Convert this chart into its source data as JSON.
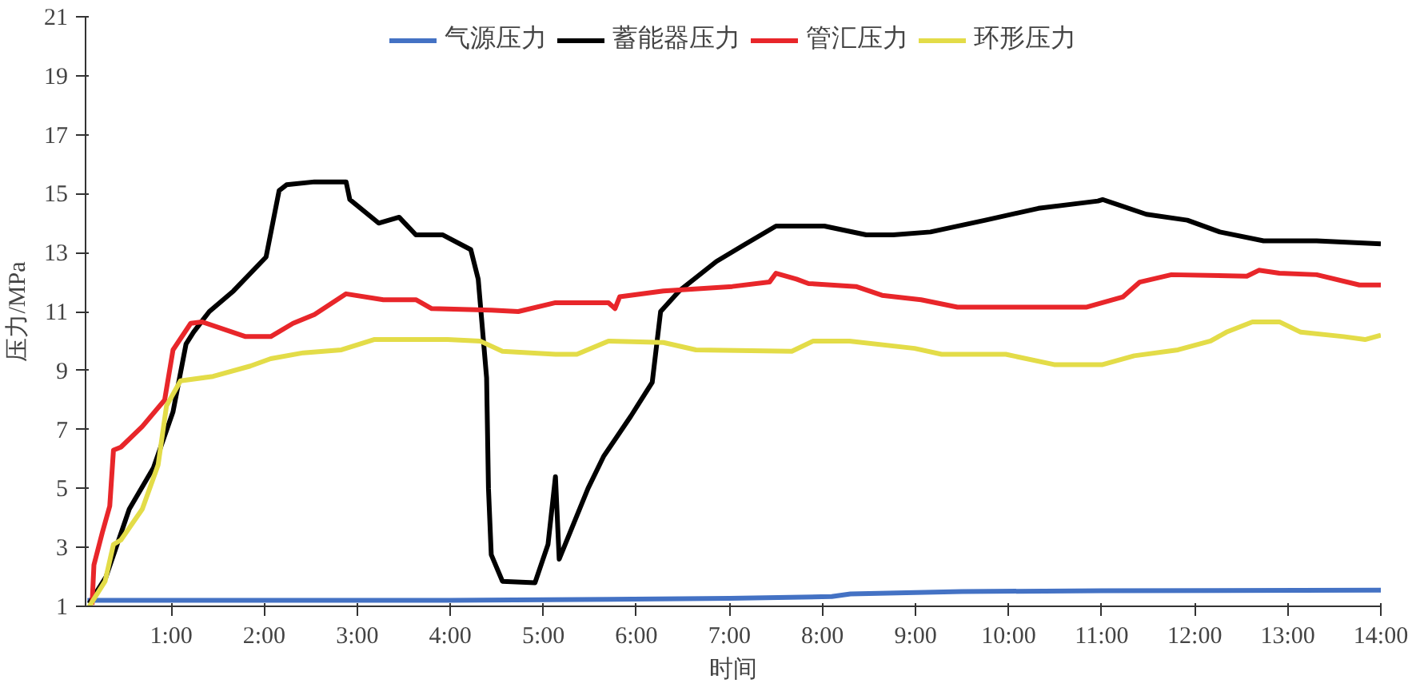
{
  "chart_data": {
    "type": "line",
    "xlabel": "时间",
    "ylabel": "压力/MPa",
    "xlim": [
      0.08,
      14
    ],
    "ylim": [
      1,
      21
    ],
    "xticks": [
      {
        "value": 1,
        "label": "1:00"
      },
      {
        "value": 2,
        "label": "2:00"
      },
      {
        "value": 3,
        "label": "3:00"
      },
      {
        "value": 4,
        "label": "4:00"
      },
      {
        "value": 5,
        "label": "5:00"
      },
      {
        "value": 6,
        "label": "6:00"
      },
      {
        "value": 7,
        "label": "7:00"
      },
      {
        "value": 8,
        "label": "8:00"
      },
      {
        "value": 9,
        "label": "9:00"
      },
      {
        "value": 10,
        "label": "10:00"
      },
      {
        "value": 11,
        "label": "11:00"
      },
      {
        "value": 12,
        "label": "12:00"
      },
      {
        "value": 13,
        "label": "13:00"
      },
      {
        "value": 14,
        "label": "14:00"
      }
    ],
    "yticks": [
      1,
      3,
      5,
      7,
      9,
      11,
      13,
      15,
      17,
      19,
      21
    ],
    "grid": false,
    "legend": "top",
    "marker": "none",
    "line_style": "solid",
    "series": [
      {
        "name": "气源压力",
        "color": "#4472c4",
        "x": [
          0.1,
          4,
          7,
          8.1,
          8.3,
          9.5,
          11,
          14
        ],
        "values": [
          1.2,
          1.2,
          1.27,
          1.33,
          1.42,
          1.5,
          1.53,
          1.55
        ]
      },
      {
        "name": "蓄能器压力",
        "color": "#000000",
        "x": [
          0.12,
          0.3,
          0.55,
          0.81,
          1.02,
          1.16,
          1.24,
          1.41,
          1.67,
          2.02,
          2.16,
          2.24,
          2.54,
          2.88,
          2.92,
          3.23,
          3.45,
          3.63,
          3.92,
          4.22,
          4.3,
          4.39,
          4.41,
          4.44,
          4.56,
          4.91,
          5.05,
          5.13,
          5.17,
          5.48,
          5.65,
          5.94,
          6.17,
          6.26,
          6.46,
          6.86,
          7.15,
          7.5,
          8.02,
          8.47,
          8.76,
          9.16,
          9.75,
          10.32,
          10.96,
          11.01,
          11.48,
          11.92,
          12.27,
          12.74,
          13.31,
          14
        ],
        "values": [
          1.1,
          2.0,
          4.3,
          5.7,
          7.6,
          9.9,
          10.3,
          11,
          11.7,
          12.85,
          15.1,
          15.3,
          15.4,
          15.4,
          14.8,
          14.0,
          14.2,
          13.6,
          13.6,
          13.1,
          12.1,
          8.75,
          5.0,
          2.75,
          1.85,
          1.8,
          3.1,
          5.4,
          2.6,
          5.0,
          6.1,
          7.45,
          8.6,
          11.0,
          11.7,
          12.7,
          13.25,
          13.9,
          13.9,
          13.6,
          13.6,
          13.7,
          14.1,
          14.5,
          14.75,
          14.8,
          14.3,
          14.1,
          13.7,
          13.4,
          13.4,
          13.3
        ]
      },
      {
        "name": "管汇压力",
        "color": "#e8262a",
        "x": [
          0.15,
          0.17,
          0.26,
          0.34,
          0.38,
          0.46,
          0.69,
          0.93,
          1.02,
          1.21,
          1.33,
          1.8,
          2.07,
          2.31,
          2.54,
          2.88,
          3.28,
          3.63,
          3.8,
          4.44,
          4.73,
          5.13,
          5.7,
          5.77,
          5.82,
          6.29,
          7.03,
          7.43,
          7.5,
          7.72,
          7.85,
          8.36,
          8.64,
          9.06,
          9.45,
          10.84,
          11.23,
          11.41,
          11.75,
          12.56,
          12.69,
          12.91,
          13.31,
          13.77,
          14
        ],
        "values": [
          1.05,
          2.4,
          3.5,
          4.4,
          6.3,
          6.4,
          7.1,
          8.0,
          9.7,
          10.6,
          10.65,
          10.15,
          10.15,
          10.6,
          10.9,
          11.6,
          11.4,
          11.4,
          11.1,
          11.05,
          11.0,
          11.3,
          11.3,
          11.1,
          11.5,
          11.7,
          11.85,
          12.0,
          12.3,
          12.1,
          11.95,
          11.85,
          11.55,
          11.4,
          11.15,
          11.15,
          11.5,
          12.0,
          12.25,
          12.2,
          12.4,
          12.3,
          12.25,
          11.9,
          11.9
        ]
      },
      {
        "name": "环形压力",
        "color": "#e3dc48",
        "x": [
          0.12,
          0.29,
          0.38,
          0.46,
          0.69,
          0.86,
          0.95,
          1.1,
          1.45,
          1.85,
          2.07,
          2.42,
          2.83,
          3.18,
          3.97,
          4.32,
          4.56,
          5.13,
          5.36,
          5.7,
          6.29,
          6.64,
          7.67,
          7.9,
          8.29,
          8.99,
          9.28,
          9.97,
          10.49,
          11.01,
          11.35,
          11.82,
          12.17,
          12.34,
          12.62,
          12.91,
          13.14,
          13.6,
          13.83,
          14
        ],
        "values": [
          1.0,
          1.85,
          3.1,
          3.25,
          4.3,
          5.8,
          7.8,
          8.65,
          8.8,
          9.15,
          9.4,
          9.6,
          9.7,
          10.05,
          10.05,
          10.0,
          9.65,
          9.55,
          9.55,
          10.0,
          9.95,
          9.7,
          9.65,
          10.0,
          10.0,
          9.75,
          9.55,
          9.55,
          9.2,
          9.2,
          9.5,
          9.7,
          10.0,
          10.3,
          10.65,
          10.65,
          10.3,
          10.15,
          10.05,
          10.2
        ]
      }
    ]
  }
}
